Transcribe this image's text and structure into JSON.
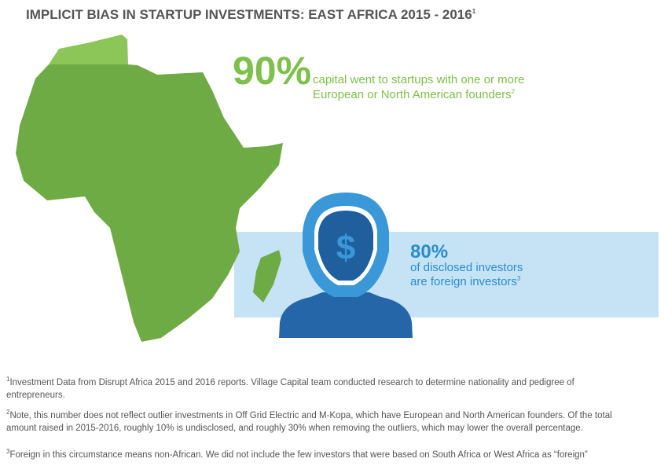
{
  "header": {
    "title": "IMPLICIT BIAS IN STARTUP INVESTMENTS: EAST AFRICA 2015 - 2016",
    "title_ref": "1"
  },
  "stats": [
    {
      "value": "90%",
      "lines": [
        "capital went to startups with one or more",
        "European or North American founders"
      ],
      "ref": "2"
    },
    {
      "value": "80%",
      "lines": [
        "of disclosed investors",
        "are foreign investors"
      ],
      "ref": "3"
    }
  ],
  "footnotes": [
    {
      "ref": "1",
      "lines": [
        "Investment Data from Disrupt Africa 2015 and 2016 reports. Village Capital team conducted research to determine nationality and pedigree of",
        "entrepreneurs."
      ]
    },
    {
      "ref": "2",
      "lines": [
        "Note, this number does not reflect outlier investments in Off Grid Electric and M-Kopa, which have European and North American founders. Of the total",
        "amount raised in 2015-2016, roughly 10% is undisclosed, and roughly 30% when removing the outliers, which may lower the overall percentage."
      ]
    },
    {
      "ref": "3",
      "lines": [
        "Foreign in this circumstance means non-African. We did not include the few investors that were based on South Africa or West Africa as “foreign”"
      ]
    }
  ]
}
